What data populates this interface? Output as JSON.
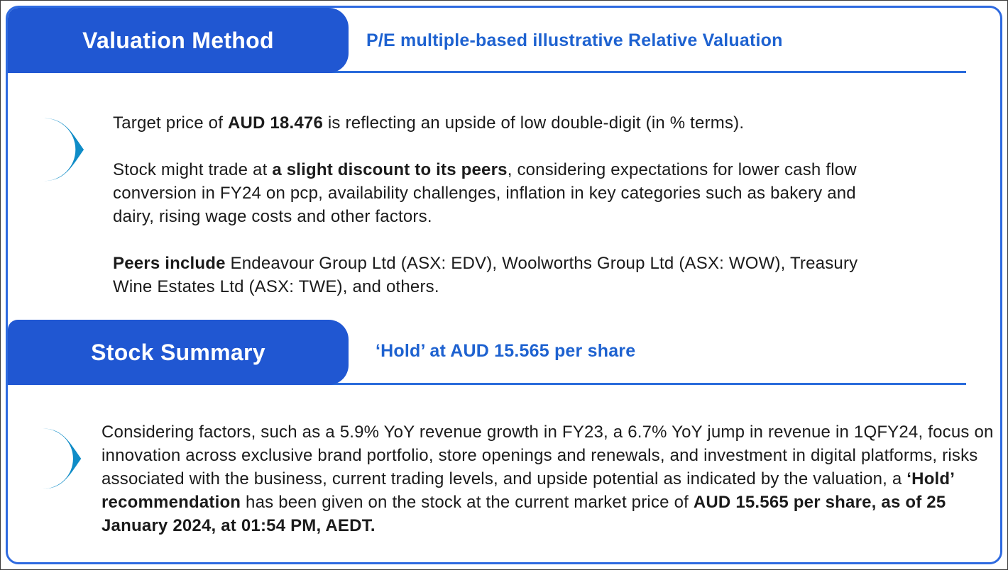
{
  "colors": {
    "border_blue": "#2E6AE0",
    "tab_blue": "#2057D2",
    "subtitle_blue": "#1E62D0",
    "divider_blue": "#2A6BDB",
    "pin_blue": "#0F8CC7",
    "text_dark": "#1B1B1B"
  },
  "sections": [
    {
      "tab_label": "Valuation Method",
      "subtitle": "P/E multiple-based illustrative Relative Valuation",
      "bullet_icon": "pin-right-icon",
      "paragraphs": [
        {
          "segments": [
            {
              "text": "Target price of ",
              "bold": false
            },
            {
              "text": "AUD 18.476",
              "bold": true
            },
            {
              "text": " is reflecting an upside of low double-digit (in % terms).",
              "bold": false
            }
          ]
        },
        {
          "segments": [
            {
              "text": "Stock might trade at ",
              "bold": false
            },
            {
              "text": "a slight discount to its peers",
              "bold": true
            },
            {
              "text": ", considering expectations for lower cash flow conversion in FY24 on pcp, availability challenges, inflation in key categories such as bakery and dairy, rising wage costs and other factors.",
              "bold": false
            }
          ]
        },
        {
          "segments": [
            {
              "text": "Peers include ",
              "bold": true
            },
            {
              "text": "Endeavour Group Ltd (ASX: EDV), Woolworths Group Ltd (ASX: WOW), Treasury Wine Estates Ltd (ASX: TWE), and others.",
              "bold": false
            }
          ]
        }
      ]
    },
    {
      "tab_label": "Stock Summary",
      "subtitle": "‘Hold’ at AUD 15.565 per share",
      "bullet_icon": "pin-right-icon",
      "paragraphs": [
        {
          "segments": [
            {
              "text": "Considering factors, such as a 5.9% YoY revenue growth in FY23, a 6.7% YoY jump in revenue in 1QFY24, focus on innovation across exclusive brand portfolio, store openings and renewals, and investment in digital platforms, risks associated with the business, current trading levels, and upside potential as indicated by the valuation, a ",
              "bold": false
            },
            {
              "text": "‘Hold’ recommendation",
              "bold": true
            },
            {
              "text": " has been given on the stock at the current market price of ",
              "bold": false
            },
            {
              "text": "AUD 15.565 per share, as of 25 January 2024, at 01:54 PM, AEDT.",
              "bold": true
            }
          ]
        }
      ]
    }
  ]
}
